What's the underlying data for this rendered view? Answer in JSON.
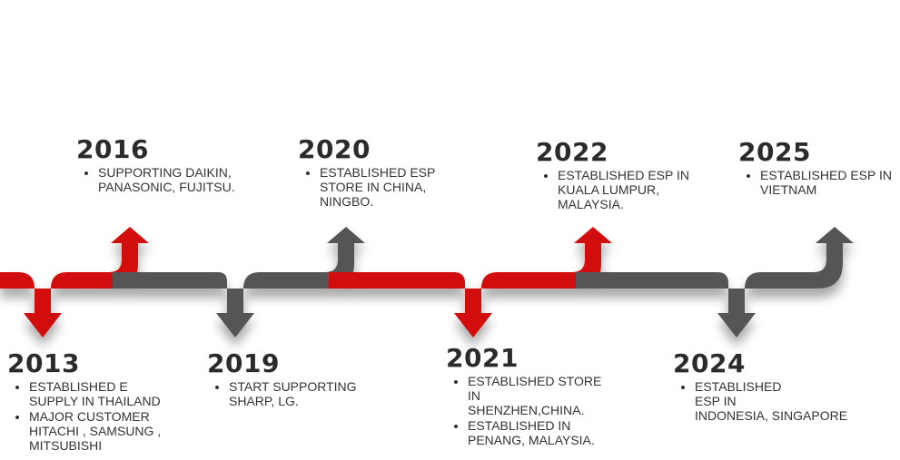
{
  "colors": {
    "red": "#d10f0f",
    "gray": "#555555",
    "text": "#333333"
  },
  "milestones": [
    {
      "year": "2013",
      "items": [
        "ESTABLISHED E\nSUPPLY IN THAILAND",
        "MAJOR CUSTOMER\nHITACHI , SAMSUNG ,\nMITSUBISHI"
      ]
    },
    {
      "year": "2016",
      "items": [
        "SUPPORTING DAIKIN,\nPANASONIC, FUJITSU."
      ]
    },
    {
      "year": "2019",
      "items": [
        "START SUPPORTING\nSHARP, LG."
      ]
    },
    {
      "year": "2020",
      "items": [
        "ESTABLISHED ESP\nSTORE IN CHINA,\nNINGBO."
      ]
    },
    {
      "year": "2021",
      "items": [
        "ESTABLISHED STORE\nIN\nSHENZHEN,CHINA.",
        "ESTABLISHED IN\nPENANG, MALAYSIA."
      ]
    },
    {
      "year": "2022",
      "items": [
        "ESTABLISHED ESP IN\nKUALA LUMPUR,\nMALAYSIA."
      ]
    },
    {
      "year": "2024",
      "items": [
        "ESTABLISHED\nESP IN\nINDONESIA, SINGAPORE"
      ]
    },
    {
      "year": "2025",
      "items": [
        "ESTABLISHED ESP IN\nVIETNAM"
      ]
    }
  ]
}
